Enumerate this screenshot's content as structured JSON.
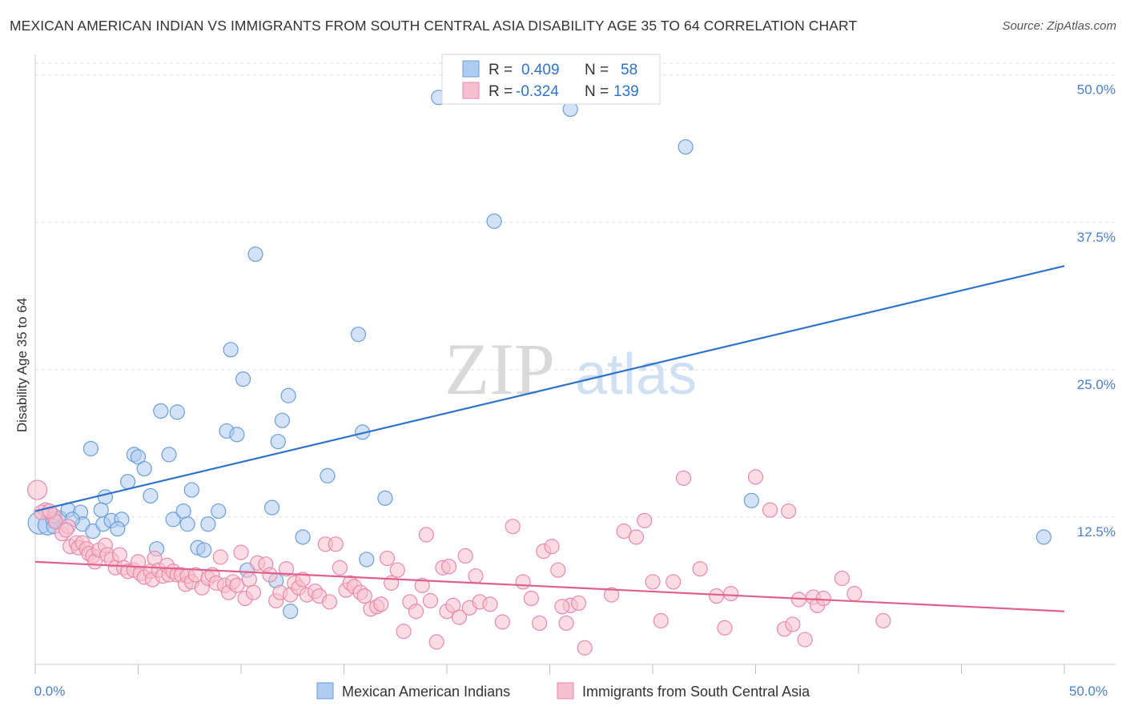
{
  "header": {
    "title": "MEXICAN AMERICAN INDIAN VS IMMIGRANTS FROM SOUTH CENTRAL ASIA DISABILITY AGE 35 TO 64 CORRELATION CHART",
    "source": "Source: ZipAtlas.com"
  },
  "watermark": {
    "zip": "ZIP",
    "atlas": "atlas"
  },
  "legend_top": {
    "rows": [
      {
        "r_label": "R =",
        "r_value": "0.409",
        "n_label": "N =",
        "n_value": "58"
      },
      {
        "r_label": "R =",
        "r_value": "-0.324",
        "n_label": "N =",
        "n_value": "139"
      }
    ]
  },
  "colors": {
    "blue_fill": "#aecbf0",
    "blue_stroke": "#6a9fd8",
    "blue_line": "#2f73cc",
    "pink_fill": "#f7bfd0",
    "pink_stroke": "#e88aa8",
    "pink_line": "#e0608a",
    "tick_text": "#4a7fcf",
    "grid": "#dddddd"
  },
  "chart_data": {
    "type": "scatter",
    "title": "MEXICAN AMERICAN INDIAN VS IMMIGRANTS FROM SOUTH CENTRAL ASIA DISABILITY AGE 35 TO 64 CORRELATION CHART",
    "xlabel": "",
    "ylabel": "Disability Age 35 to 64",
    "xlim": [
      0,
      50
    ],
    "ylim": [
      0,
      51
    ],
    "x_tick_labels": [
      "0.0%",
      "50.0%"
    ],
    "y_ticks": [
      12.5,
      25.0,
      37.5,
      50.0
    ],
    "y_tick_labels": [
      "12.5%",
      "25.0%",
      "37.5%",
      "50.0%"
    ],
    "legend_position": "top-center",
    "series": [
      {
        "name": "Mexican American Indians",
        "color": "blue",
        "R": 0.409,
        "N": 58,
        "trend": {
          "x": [
            0,
            50
          ],
          "y": [
            13.0,
            33.8
          ]
        },
        "points": [
          [
            0.2,
            12.0,
            14
          ],
          [
            0.6,
            11.8,
            12
          ],
          [
            0.9,
            12.3,
            10
          ],
          [
            1.2,
            12.4,
            9
          ],
          [
            1.6,
            13.1,
            9
          ],
          [
            2.2,
            12.9,
            9
          ],
          [
            2.3,
            11.9,
            9
          ],
          [
            2.8,
            11.3,
            9
          ],
          [
            3.3,
            11.9,
            9
          ],
          [
            3.7,
            12.2,
            9
          ],
          [
            4.2,
            12.3,
            9
          ],
          [
            4.0,
            11.5,
            9
          ],
          [
            2.7,
            18.3,
            9
          ],
          [
            3.4,
            14.2,
            9
          ],
          [
            4.5,
            15.5,
            9
          ],
          [
            4.8,
            17.8,
            9
          ],
          [
            5.0,
            17.6,
            9
          ],
          [
            5.3,
            16.6,
            9
          ],
          [
            5.6,
            14.3,
            9
          ],
          [
            5.9,
            9.8,
            9
          ],
          [
            6.1,
            21.5,
            9
          ],
          [
            6.5,
            17.8,
            9
          ],
          [
            6.7,
            12.3,
            9
          ],
          [
            6.9,
            21.4,
            9
          ],
          [
            7.2,
            13.0,
            9
          ],
          [
            7.4,
            11.9,
            9
          ],
          [
            7.6,
            14.8,
            9
          ],
          [
            7.9,
            9.9,
            9
          ],
          [
            8.2,
            9.7,
            9
          ],
          [
            8.4,
            11.9,
            9
          ],
          [
            8.9,
            13.0,
            9
          ],
          [
            9.3,
            19.8,
            9
          ],
          [
            9.5,
            26.7,
            9
          ],
          [
            9.8,
            19.5,
            9
          ],
          [
            10.1,
            24.2,
            9
          ],
          [
            10.3,
            8.0,
            9
          ],
          [
            10.7,
            34.8,
            9
          ],
          [
            11.5,
            13.3,
            9
          ],
          [
            11.7,
            7.1,
            9
          ],
          [
            11.8,
            18.9,
            9
          ],
          [
            12.0,
            20.7,
            9
          ],
          [
            12.3,
            22.8,
            9
          ],
          [
            12.4,
            4.5,
            9
          ],
          [
            13.0,
            10.8,
            9
          ],
          [
            14.2,
            16.0,
            9
          ],
          [
            15.7,
            28.0,
            9
          ],
          [
            15.9,
            19.7,
            9
          ],
          [
            16.1,
            8.9,
            9
          ],
          [
            17.0,
            14.1,
            9
          ],
          [
            19.6,
            48.1,
            9
          ],
          [
            22.3,
            37.6,
            9
          ],
          [
            26.0,
            47.1,
            9
          ],
          [
            31.6,
            43.9,
            9
          ],
          [
            34.8,
            13.9,
            9
          ],
          [
            49.0,
            10.8,
            9
          ],
          [
            1.8,
            12.3,
            9
          ],
          [
            3.2,
            13.1,
            9
          ],
          [
            0.9,
            11.7,
            9
          ]
        ]
      },
      {
        "name": "Immigrants from South Central Asia",
        "color": "pink",
        "R": -0.324,
        "N": 139,
        "trend": {
          "x": [
            0,
            50
          ],
          "y": [
            8.7,
            4.5
          ]
        },
        "points": [
          [
            0.1,
            14.8,
            12
          ],
          [
            0.5,
            13.1,
            9
          ],
          [
            0.9,
            12.6,
            9
          ],
          [
            1.0,
            12.1,
            9
          ],
          [
            1.3,
            11.1,
            9
          ],
          [
            1.6,
            11.7,
            9
          ],
          [
            1.7,
            10.0,
            9
          ],
          [
            2.0,
            10.3,
            9
          ],
          [
            2.1,
            9.9,
            9
          ],
          [
            2.3,
            10.3,
            9
          ],
          [
            2.5,
            9.8,
            9
          ],
          [
            2.6,
            9.4,
            9
          ],
          [
            2.8,
            9.2,
            9
          ],
          [
            2.9,
            8.7,
            9
          ],
          [
            3.1,
            9.7,
            9
          ],
          [
            3.4,
            10.1,
            9
          ],
          [
            3.5,
            9.3,
            9
          ],
          [
            3.7,
            8.9,
            9
          ],
          [
            3.9,
            8.2,
            9
          ],
          [
            4.1,
            9.3,
            9
          ],
          [
            4.3,
            8.2,
            9
          ],
          [
            4.5,
            7.9,
            9
          ],
          [
            4.8,
            8.0,
            9
          ],
          [
            5.0,
            8.7,
            9
          ],
          [
            5.1,
            7.7,
            9
          ],
          [
            5.3,
            7.4,
            9
          ],
          [
            5.6,
            7.9,
            9
          ],
          [
            5.7,
            7.2,
            9
          ],
          [
            5.8,
            9.0,
            9
          ],
          [
            6.0,
            8.0,
            9
          ],
          [
            6.2,
            7.5,
            9
          ],
          [
            6.4,
            8.4,
            9
          ],
          [
            6.5,
            7.6,
            9
          ],
          [
            6.7,
            7.9,
            9
          ],
          [
            6.9,
            7.6,
            9
          ],
          [
            7.1,
            7.6,
            9
          ],
          [
            7.3,
            6.8,
            9
          ],
          [
            7.4,
            7.5,
            9
          ],
          [
            7.6,
            7.0,
            9
          ],
          [
            7.8,
            7.6,
            9
          ],
          [
            8.1,
            6.5,
            9
          ],
          [
            8.4,
            7.3,
            9
          ],
          [
            8.6,
            7.6,
            9
          ],
          [
            8.8,
            6.9,
            9
          ],
          [
            9.0,
            9.1,
            9
          ],
          [
            9.2,
            6.7,
            9
          ],
          [
            9.4,
            6.1,
            9
          ],
          [
            9.6,
            7.0,
            9
          ],
          [
            9.8,
            6.7,
            9
          ],
          [
            10.0,
            9.5,
            9
          ],
          [
            10.2,
            5.6,
            9
          ],
          [
            10.4,
            7.2,
            9
          ],
          [
            10.6,
            6.1,
            9
          ],
          [
            10.8,
            8.6,
            9
          ],
          [
            11.2,
            8.5,
            9
          ],
          [
            11.4,
            7.6,
            9
          ],
          [
            11.7,
            5.4,
            9
          ],
          [
            11.9,
            6.1,
            9
          ],
          [
            12.2,
            8.1,
            9
          ],
          [
            12.4,
            5.9,
            9
          ],
          [
            12.6,
            6.9,
            9
          ],
          [
            12.8,
            6.5,
            9
          ],
          [
            13.0,
            7.2,
            9
          ],
          [
            13.2,
            5.9,
            9
          ],
          [
            13.6,
            6.2,
            9
          ],
          [
            13.8,
            5.8,
            9
          ],
          [
            14.1,
            10.2,
            9
          ],
          [
            14.3,
            5.3,
            9
          ],
          [
            14.6,
            10.2,
            9
          ],
          [
            14.8,
            8.2,
            9
          ],
          [
            15.1,
            6.3,
            9
          ],
          [
            15.3,
            6.9,
            9
          ],
          [
            15.5,
            6.6,
            9
          ],
          [
            15.8,
            6.1,
            9
          ],
          [
            16.0,
            5.8,
            9
          ],
          [
            16.3,
            4.7,
            9
          ],
          [
            16.6,
            4.9,
            9
          ],
          [
            16.8,
            5.1,
            9
          ],
          [
            17.1,
            9.0,
            9
          ],
          [
            17.3,
            6.9,
            9
          ],
          [
            17.6,
            8.0,
            9
          ],
          [
            17.9,
            2.8,
            9
          ],
          [
            18.2,
            5.3,
            9
          ],
          [
            18.5,
            4.5,
            9
          ],
          [
            18.8,
            6.7,
            9
          ],
          [
            19.0,
            11.0,
            9
          ],
          [
            19.2,
            5.4,
            9
          ],
          [
            19.5,
            1.9,
            9
          ],
          [
            19.8,
            8.2,
            9
          ],
          [
            20.0,
            4.5,
            9
          ],
          [
            20.3,
            5.0,
            9
          ],
          [
            20.6,
            4.0,
            9
          ],
          [
            20.9,
            9.2,
            9
          ],
          [
            21.1,
            4.8,
            9
          ],
          [
            21.4,
            7.5,
            9
          ],
          [
            21.6,
            5.3,
            9
          ],
          [
            22.1,
            5.1,
            9
          ],
          [
            22.7,
            3.6,
            9
          ],
          [
            23.2,
            11.7,
            9
          ],
          [
            23.7,
            7.0,
            9
          ],
          [
            24.1,
            5.6,
            9
          ],
          [
            24.5,
            3.5,
            9
          ],
          [
            24.7,
            9.6,
            9
          ],
          [
            25.1,
            10.0,
            9
          ],
          [
            25.4,
            8.0,
            9
          ],
          [
            25.8,
            3.5,
            9
          ],
          [
            26.0,
            5.0,
            9
          ],
          [
            25.6,
            4.9,
            9
          ],
          [
            26.4,
            5.2,
            9
          ],
          [
            26.7,
            1.4,
            9
          ],
          [
            28.0,
            5.9,
            9
          ],
          [
            28.6,
            11.3,
            9
          ],
          [
            29.2,
            10.8,
            9
          ],
          [
            29.6,
            12.2,
            9
          ],
          [
            30.0,
            7.0,
            9
          ],
          [
            30.4,
            3.7,
            9
          ],
          [
            31.0,
            7.0,
            9
          ],
          [
            31.5,
            15.8,
            9
          ],
          [
            32.3,
            8.1,
            9
          ],
          [
            33.1,
            5.8,
            9
          ],
          [
            33.5,
            3.1,
            9
          ],
          [
            33.8,
            6.0,
            9
          ],
          [
            35.0,
            15.9,
            9
          ],
          [
            35.7,
            13.1,
            9
          ],
          [
            36.4,
            3.0,
            9
          ],
          [
            36.8,
            3.4,
            9
          ],
          [
            36.6,
            13.0,
            9
          ],
          [
            37.1,
            5.5,
            9
          ],
          [
            37.4,
            2.1,
            9
          ],
          [
            37.8,
            5.7,
            9
          ],
          [
            38.0,
            5.0,
            9
          ],
          [
            38.3,
            5.6,
            9
          ],
          [
            39.2,
            7.3,
            9
          ],
          [
            39.8,
            6.0,
            9
          ],
          [
            41.2,
            3.7,
            9
          ],
          [
            0.3,
            12.9,
            9
          ],
          [
            0.7,
            13.0,
            9
          ],
          [
            1.5,
            11.4,
            9
          ],
          [
            20.1,
            8.3,
            9
          ]
        ]
      }
    ]
  },
  "legend_bottom": {
    "items": [
      "Mexican American Indians",
      "Immigrants from South Central Asia"
    ]
  }
}
